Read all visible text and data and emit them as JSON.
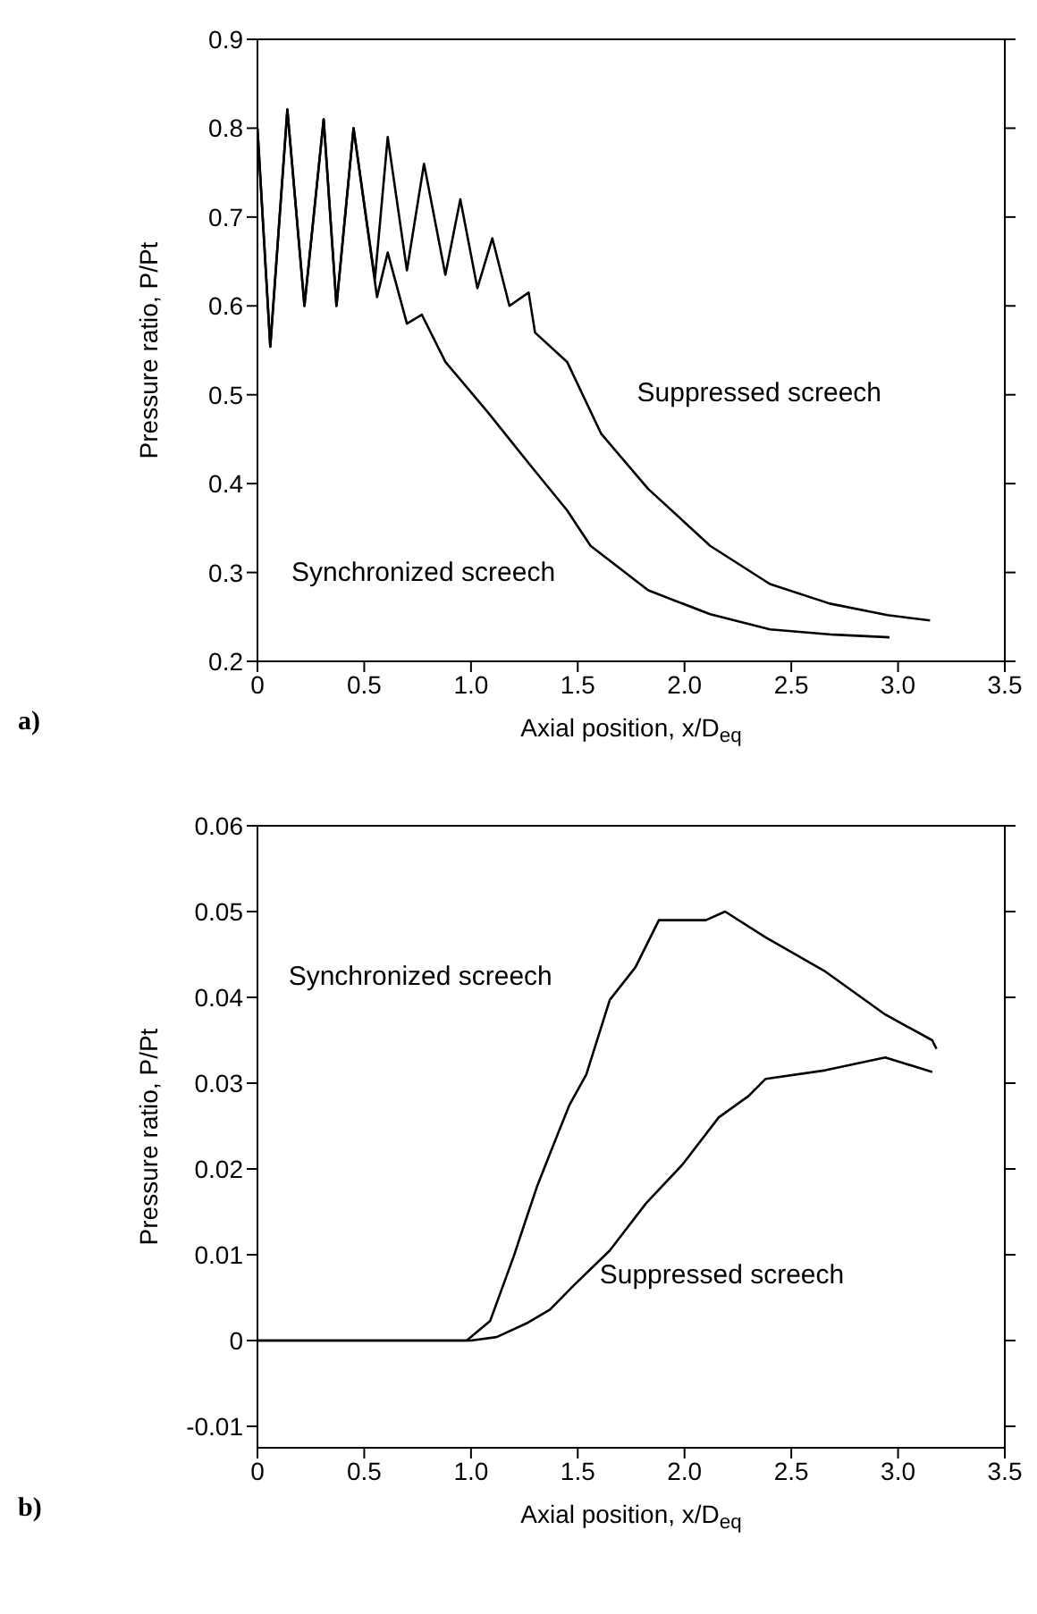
{
  "chart_data": [
    {
      "type": "line",
      "xlabel": "Axial position, x/D$_{eq}$",
      "ylabel": "Pressure ratio, P/Pt",
      "annotations": [
        "a)"
      ],
      "xlim": [
        0,
        3.5
      ],
      "ylim": [
        0.2,
        0.9
      ],
      "xticks": [
        0,
        0.5,
        {
          "value": 1,
          "label": "1.0"
        },
        1.5,
        {
          "value": 2,
          "label": "2.0"
        },
        2.5,
        {
          "value": 3,
          "label": "3.0"
        },
        3.5
      ],
      "yticks": [
        0.2,
        0.3,
        0.4,
        0.5,
        0.6,
        0.7,
        0.8,
        0.9
      ],
      "marker": "none",
      "line_style": "solid",
      "series": [
        {
          "name": "Suppressed screech",
          "color": "#000000",
          "x": [
            0,
            0.06,
            0.14,
            0.22,
            0.31,
            0.37,
            0.45,
            0.55,
            0.61,
            0.7,
            0.78,
            0.88,
            0.95,
            1.03,
            1.1,
            1.18,
            1.27,
            1.3,
            1.45,
            1.61,
            1.83,
            2.12,
            2.4,
            2.68,
            2.95,
            3.15
          ],
          "values": [
            0.8,
            0.554,
            0.821,
            0.6,
            0.81,
            0.6,
            0.8,
            0.63,
            0.79,
            0.64,
            0.76,
            0.635,
            0.72,
            0.62,
            0.676,
            0.6,
            0.615,
            0.57,
            0.537,
            0.456,
            0.394,
            0.33,
            0.287,
            0.265,
            0.252,
            0.246
          ]
        },
        {
          "name": "Synchronized screech",
          "color": "#000000",
          "x": [
            0,
            0.06,
            0.14,
            0.22,
            0.31,
            0.37,
            0.45,
            0.56,
            0.61,
            0.7,
            0.77,
            0.88,
            1.08,
            1.28,
            1.45,
            1.56,
            1.83,
            2.12,
            2.4,
            2.7,
            2.96
          ],
          "values": [
            0.8,
            0.554,
            0.821,
            0.6,
            0.81,
            0.6,
            0.8,
            0.61,
            0.66,
            0.58,
            0.59,
            0.537,
            0.48,
            0.42,
            0.37,
            0.33,
            0.28,
            0.253,
            0.236,
            0.23,
            0.227
          ]
        }
      ]
    },
    {
      "type": "line",
      "xlabel": "Axial position, x/D$_{eq}$",
      "ylabel": "Pressure ratio, P/Pt",
      "annotations": [
        "b)"
      ],
      "xlim": [
        0,
        3.5
      ],
      "ylim": [
        -0.0125,
        0.06
      ],
      "xticks": [
        0,
        0.5,
        {
          "value": 1,
          "label": "1.0"
        },
        1.5,
        {
          "value": 2,
          "label": "2.0"
        },
        2.5,
        {
          "value": 3,
          "label": "3.0"
        },
        3.5
      ],
      "yticks": [
        -0.01,
        0,
        0.01,
        0.02,
        0.03,
        0.04,
        0.05,
        0.06
      ],
      "marker": "none",
      "line_style": "solid",
      "series": [
        {
          "name": "Synchronized screech",
          "color": "#000000",
          "x": [
            0,
            0.5,
            0.98,
            1.09,
            1.2,
            1.26,
            1.31,
            1.37,
            1.46,
            1.54,
            1.65,
            1.77,
            1.88,
            2.1,
            2.19,
            2.38,
            2.66,
            2.94,
            3.16,
            3.18
          ],
          "values": [
            0,
            0,
            0,
            0.0023,
            0.0098,
            0.0143,
            0.018,
            0.0218,
            0.0274,
            0.031,
            0.0397,
            0.0435,
            0.049,
            0.049,
            0.05,
            0.047,
            0.043,
            0.038,
            0.035,
            0.034
          ]
        },
        {
          "name": "Suppressed screech",
          "color": "#000000",
          "x": [
            0,
            0.5,
            1.0,
            1.12,
            1.26,
            1.37,
            1.48,
            1.65,
            1.82,
            1.99,
            2.16,
            2.3,
            2.38,
            2.66,
            2.94,
            3.16
          ],
          "values": [
            0,
            0,
            0,
            0.0004,
            0.002,
            0.0036,
            0.0064,
            0.0105,
            0.016,
            0.0205,
            0.026,
            0.0285,
            0.0305,
            0.0315,
            0.033,
            0.0313
          ]
        }
      ]
    }
  ]
}
